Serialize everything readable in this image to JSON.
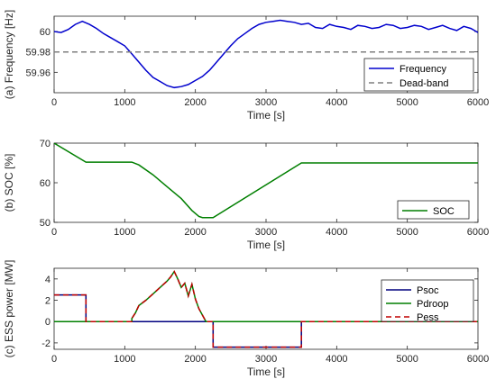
{
  "chart_data": [
    {
      "type": "line",
      "panel": "a",
      "ylabel": "(a) Frequency [Hz]",
      "xlabel": "Time [s]",
      "xlim": [
        0,
        6000
      ],
      "ylim": [
        59.94,
        60.015
      ],
      "xticks": [
        0,
        1000,
        2000,
        3000,
        4000,
        5000,
        6000
      ],
      "yticks": [
        59.96,
        59.98,
        60
      ],
      "ytick_labels": [
        "59.96",
        "59.98",
        "60"
      ],
      "legend_position": "bottom-right",
      "series": [
        {
          "name": "Frequency",
          "color": "#0000cd",
          "style": "solid",
          "points": [
            [
              0,
              60.0
            ],
            [
              100,
              59.999
            ],
            [
              200,
              60.002
            ],
            [
              300,
              60.007
            ],
            [
              400,
              60.01
            ],
            [
              500,
              60.007
            ],
            [
              600,
              60.003
            ],
            [
              700,
              59.998
            ],
            [
              800,
              59.994
            ],
            [
              900,
              59.99
            ],
            [
              1000,
              59.986
            ],
            [
              1100,
              59.978
            ],
            [
              1200,
              59.97
            ],
            [
              1300,
              59.962
            ],
            [
              1400,
              59.955
            ],
            [
              1500,
              59.951
            ],
            [
              1600,
              59.947
            ],
            [
              1700,
              59.945
            ],
            [
              1800,
              59.946
            ],
            [
              1900,
              59.948
            ],
            [
              2000,
              59.952
            ],
            [
              2100,
              59.956
            ],
            [
              2200,
              59.962
            ],
            [
              2300,
              59.97
            ],
            [
              2400,
              59.978
            ],
            [
              2500,
              59.986
            ],
            [
              2600,
              59.993
            ],
            [
              2700,
              59.998
            ],
            [
              2800,
              60.003
            ],
            [
              2900,
              60.007
            ],
            [
              3000,
              60.009
            ],
            [
              3100,
              60.01
            ],
            [
              3200,
              60.011
            ],
            [
              3300,
              60.01
            ],
            [
              3400,
              60.009
            ],
            [
              3500,
              60.007
            ],
            [
              3600,
              60.008
            ],
            [
              3700,
              60.004
            ],
            [
              3800,
              60.003
            ],
            [
              3900,
              60.007
            ],
            [
              4000,
              60.005
            ],
            [
              4100,
              60.004
            ],
            [
              4200,
              60.002
            ],
            [
              4300,
              60.006
            ],
            [
              4400,
              60.005
            ],
            [
              4500,
              60.003
            ],
            [
              4600,
              60.004
            ],
            [
              4700,
              60.007
            ],
            [
              4800,
              60.006
            ],
            [
              4900,
              60.003
            ],
            [
              5000,
              60.004
            ],
            [
              5100,
              60.006
            ],
            [
              5200,
              60.005
            ],
            [
              5300,
              60.002
            ],
            [
              5400,
              60.004
            ],
            [
              5500,
              60.006
            ],
            [
              5600,
              60.003
            ],
            [
              5700,
              60.001
            ],
            [
              5800,
              60.005
            ],
            [
              5900,
              60.003
            ],
            [
              6000,
              59.999
            ]
          ]
        },
        {
          "name": "Dead-band",
          "color": "#7f7f7f",
          "style": "dashed",
          "points": [
            [
              0,
              59.98
            ],
            [
              6000,
              59.98
            ]
          ]
        }
      ]
    },
    {
      "type": "line",
      "panel": "b",
      "ylabel": "(b) SOC [%]",
      "xlabel": "Time [s]",
      "xlim": [
        0,
        6000
      ],
      "ylim": [
        50,
        70
      ],
      "xticks": [
        0,
        1000,
        2000,
        3000,
        4000,
        5000,
        6000
      ],
      "yticks": [
        50,
        60,
        70
      ],
      "ytick_labels": [
        "50",
        "60",
        "70"
      ],
      "legend_position": "bottom-right",
      "series": [
        {
          "name": "SOC",
          "color": "#007f00",
          "style": "solid",
          "points": [
            [
              0,
              70
            ],
            [
              450,
              65.2
            ],
            [
              1100,
              65.2
            ],
            [
              1200,
              64.5
            ],
            [
              1400,
              62.0
            ],
            [
              1600,
              59.0
            ],
            [
              1800,
              56.0
            ],
            [
              1950,
              53.0
            ],
            [
              2050,
              51.5
            ],
            [
              2100,
              51.2
            ],
            [
              2250,
              51.2
            ],
            [
              3500,
              65.0
            ],
            [
              6000,
              65.0
            ]
          ]
        }
      ]
    },
    {
      "type": "line",
      "panel": "c",
      "ylabel": "(c) ESS power [MW]",
      "xlabel": "Time [s]",
      "xlim": [
        0,
        6000
      ],
      "ylim": [
        -2.6,
        5
      ],
      "xticks": [
        0,
        1000,
        2000,
        3000,
        4000,
        5000,
        6000
      ],
      "yticks": [
        -2,
        0,
        2,
        4
      ],
      "ytick_labels": [
        "-2",
        "0",
        "2",
        "4"
      ],
      "legend_position": "top-right",
      "series": [
        {
          "name": "Psoc",
          "color": "#00007f",
          "style": "solid",
          "points": [
            [
              0,
              2.5
            ],
            [
              450,
              2.5
            ],
            [
              450,
              0
            ],
            [
              2250,
              0
            ],
            [
              2250,
              -2.4
            ],
            [
              3500,
              -2.4
            ],
            [
              3500,
              0
            ],
            [
              6000,
              0
            ]
          ]
        },
        {
          "name": "Pdroop",
          "color": "#007f00",
          "style": "solid",
          "points": [
            [
              0,
              0
            ],
            [
              1100,
              0
            ],
            [
              1100,
              0.3
            ],
            [
              1150,
              0.8
            ],
            [
              1200,
              1.5
            ],
            [
              1300,
              2.0
            ],
            [
              1400,
              2.6
            ],
            [
              1500,
              3.2
            ],
            [
              1600,
              3.8
            ],
            [
              1650,
              4.2
            ],
            [
              1700,
              4.7
            ],
            [
              1750,
              4.0
            ],
            [
              1800,
              3.2
            ],
            [
              1850,
              3.6
            ],
            [
              1900,
              2.4
            ],
            [
              1950,
              3.5
            ],
            [
              2000,
              2.1
            ],
            [
              2050,
              1.2
            ],
            [
              2100,
              0.6
            ],
            [
              2150,
              0.0
            ],
            [
              6000,
              0
            ]
          ]
        },
        {
          "name": "Pess",
          "color": "#c00000",
          "style": "dashed",
          "points": [
            [
              0,
              2.5
            ],
            [
              450,
              2.5
            ],
            [
              450,
              0
            ],
            [
              1100,
              0
            ],
            [
              1100,
              0.3
            ],
            [
              1150,
              0.8
            ],
            [
              1200,
              1.5
            ],
            [
              1300,
              2.0
            ],
            [
              1400,
              2.6
            ],
            [
              1500,
              3.2
            ],
            [
              1600,
              3.8
            ],
            [
              1650,
              4.2
            ],
            [
              1700,
              4.7
            ],
            [
              1750,
              4.0
            ],
            [
              1800,
              3.2
            ],
            [
              1850,
              3.6
            ],
            [
              1900,
              2.4
            ],
            [
              1950,
              3.5
            ],
            [
              2000,
              2.1
            ],
            [
              2050,
              1.2
            ],
            [
              2100,
              0.6
            ],
            [
              2150,
              0.0
            ],
            [
              2250,
              0
            ],
            [
              2250,
              -2.4
            ],
            [
              3500,
              -2.4
            ],
            [
              3500,
              0
            ],
            [
              6000,
              0
            ]
          ]
        }
      ]
    }
  ]
}
